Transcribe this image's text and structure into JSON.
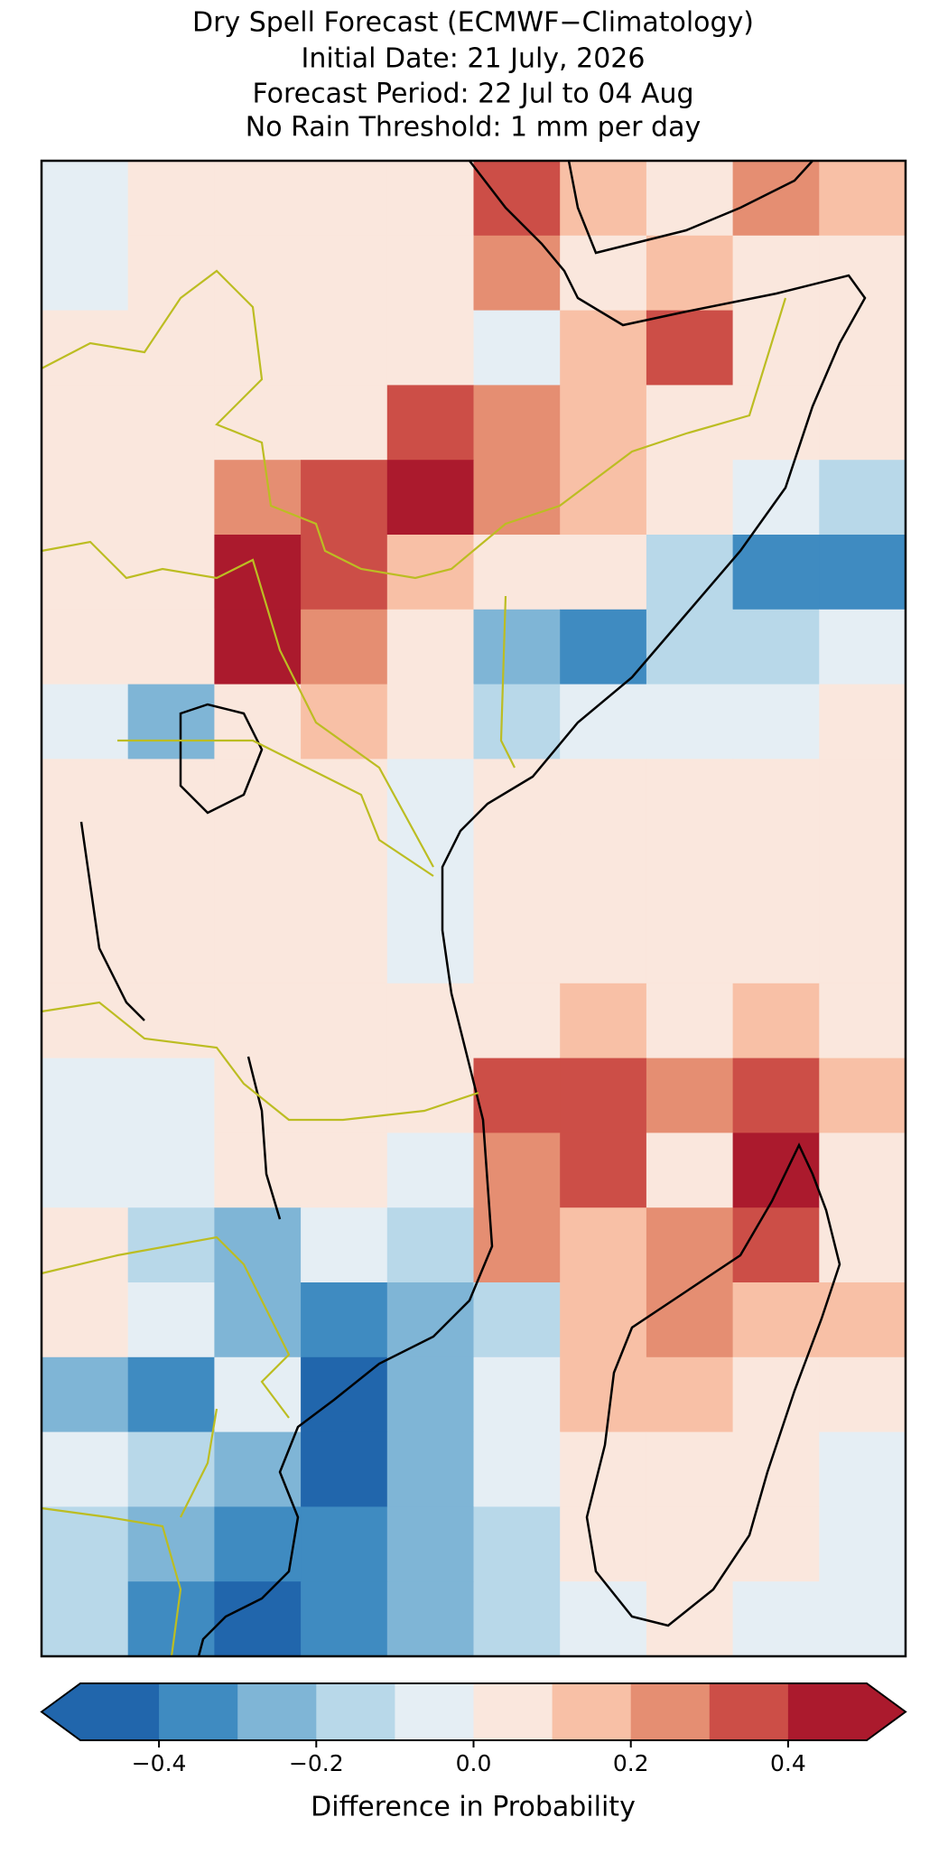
{
  "chart_data": {
    "type": "heatmap",
    "title_lines": [
      "Dry Spell Forecast (ECMWF−Climatology)",
      "Initial Date: 21 July, 2026",
      "Forecast Period: 22 Jul to 04 Aug",
      "No Rain Threshold: 1 mm per day"
    ],
    "grid": [
      [
        -0.1,
        0.05,
        0.05,
        0.05,
        0.05,
        0.35,
        0.15,
        0.05,
        0.25,
        0.15
      ],
      [
        -0.1,
        0.05,
        0.05,
        0.05,
        0.05,
        0.25,
        0.05,
        0.15,
        0.05,
        0.05
      ],
      [
        0.05,
        0.05,
        0.05,
        0.05,
        0.05,
        -0.1,
        0.15,
        0.35,
        0.05,
        0.05
      ],
      [
        0.05,
        0.05,
        0.05,
        0.05,
        0.35,
        0.25,
        0.15,
        0.05,
        0.05,
        0.05
      ],
      [
        0.05,
        0.05,
        0.25,
        0.35,
        0.45,
        0.25,
        0.15,
        0.05,
        -0.1,
        -0.15
      ],
      [
        0.05,
        0.05,
        0.45,
        0.35,
        0.15,
        0.05,
        0.05,
        -0.15,
        -0.35,
        -0.35
      ],
      [
        0.05,
        0.05,
        0.45,
        0.25,
        0.05,
        -0.25,
        -0.35,
        -0.15,
        -0.15,
        -0.1
      ],
      [
        -0.1,
        -0.25,
        0.05,
        0.15,
        0.05,
        -0.15,
        -0.1,
        -0.05,
        -0.05,
        0.05
      ],
      [
        0.05,
        0.05,
        0.05,
        0.05,
        -0.1,
        0.05,
        0.05,
        0.05,
        0.05,
        0.05
      ],
      [
        0.05,
        0.05,
        0.05,
        0.05,
        -0.1,
        0.05,
        0.05,
        0.05,
        0.05,
        0.05
      ],
      [
        0.05,
        0.05,
        0.05,
        0.05,
        -0.1,
        0.05,
        0.05,
        0.05,
        0.05,
        0.05
      ],
      [
        0.05,
        0.05,
        0.05,
        0.05,
        0.05,
        0.05,
        0.15,
        0.05,
        0.15,
        0.05
      ],
      [
        -0.1,
        -0.1,
        0.05,
        0.05,
        0.05,
        0.35,
        0.35,
        0.25,
        0.35,
        0.15
      ],
      [
        -0.05,
        -0.1,
        0.05,
        0.05,
        -0.1,
        0.25,
        0.35,
        0.05,
        0.45,
        0.05
      ],
      [
        0.05,
        -0.15,
        -0.25,
        -0.1,
        -0.15,
        0.25,
        0.15,
        0.25,
        0.35,
        0.05
      ],
      [
        0.05,
        -0.1,
        -0.25,
        -0.35,
        -0.25,
        -0.15,
        0.15,
        0.25,
        0.15,
        0.15
      ],
      [
        -0.25,
        -0.35,
        -0.1,
        -0.45,
        -0.25,
        -0.1,
        0.15,
        0.15,
        0.05,
        0.05
      ],
      [
        -0.1,
        -0.2,
        -0.25,
        -0.45,
        -0.25,
        -0.1,
        0.05,
        0.05,
        0.05,
        -0.1
      ],
      [
        -0.15,
        -0.25,
        -0.35,
        -0.35,
        -0.25,
        -0.15,
        0.05,
        0.05,
        0.05,
        -0.1
      ],
      [
        -0.15,
        -0.35,
        -0.45,
        -0.35,
        -0.25,
        -0.15,
        -0.1,
        0.05,
        -0.1,
        -0.1
      ]
    ],
    "colorbar": {
      "boundaries": [
        -0.5,
        -0.4,
        -0.3,
        -0.2,
        -0.1,
        0,
        0.1,
        0.2,
        0.3,
        0.4,
        0.5
      ],
      "colors": [
        "#2166ac",
        "#3f8bc1",
        "#7fb5d6",
        "#b8d8e9",
        "#e5eef4",
        "#fae7dd",
        "#f8c0a6",
        "#e58e72",
        "#cc4e47",
        "#ab1a2d"
      ],
      "ticks": [
        {
          "value": -0.4,
          "label": "−0.4"
        },
        {
          "value": -0.2,
          "label": "−0.2"
        },
        {
          "value": 0,
          "label": "0.0"
        },
        {
          "value": 0.2,
          "label": "0.2"
        },
        {
          "value": 0.4,
          "label": "0.4"
        }
      ],
      "label": "Difference in Probability"
    }
  }
}
